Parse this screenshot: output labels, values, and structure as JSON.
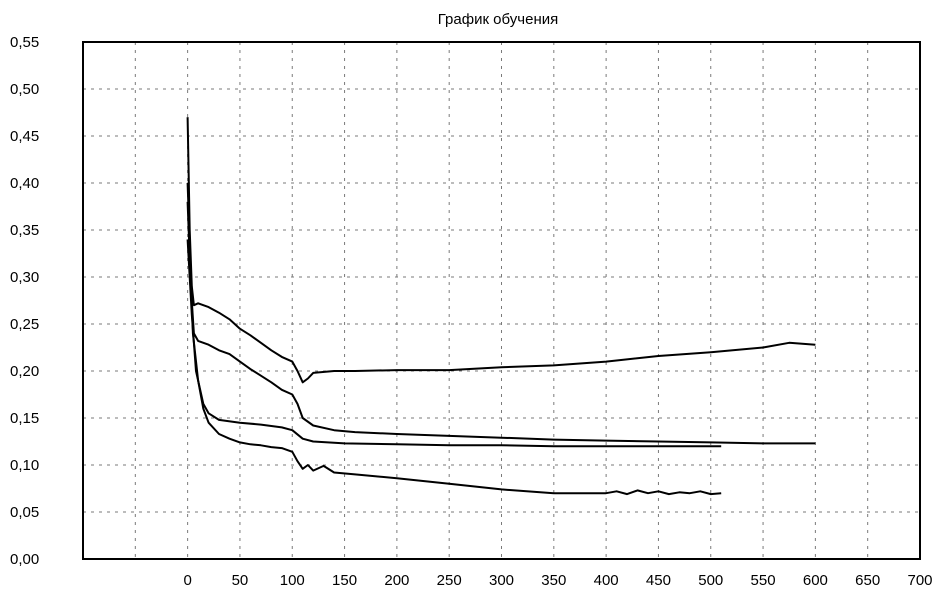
{
  "chart_data": {
    "type": "line",
    "title": "График обучения",
    "xlabel": "",
    "ylabel": "",
    "xlim": [
      -100,
      700
    ],
    "ylim": [
      0,
      0.55
    ],
    "grid": true,
    "x_ticks": [
      0,
      50,
      100,
      150,
      200,
      250,
      300,
      350,
      400,
      450,
      500,
      550,
      600,
      650,
      700
    ],
    "x_tick_labels": [
      "0",
      "50",
      "100",
      "150",
      "200",
      "250",
      "300",
      "350",
      "400",
      "450",
      "500",
      "550",
      "600",
      "650",
      "700"
    ],
    "y_ticks": [
      0,
      0.05,
      0.1,
      0.15,
      0.2,
      0.25,
      0.3,
      0.35,
      0.4,
      0.45,
      0.5,
      0.55
    ],
    "y_tick_labels": [
      "0,00",
      "0,05",
      "0,10",
      "0,15",
      "0,20",
      "0,25",
      "0,30",
      "0,35",
      "0,40",
      "0,45",
      "0,50",
      "0,55"
    ],
    "series": [
      {
        "values": [
          [
            0,
            0.47
          ],
          [
            2,
            0.35
          ],
          [
            4,
            0.29
          ],
          [
            6,
            0.27
          ],
          [
            10,
            0.272
          ],
          [
            20,
            0.268
          ],
          [
            30,
            0.262
          ],
          [
            40,
            0.255
          ],
          [
            50,
            0.245
          ],
          [
            60,
            0.238
          ],
          [
            70,
            0.23
          ],
          [
            80,
            0.222
          ],
          [
            90,
            0.215
          ],
          [
            100,
            0.21
          ],
          [
            105,
            0.2
          ],
          [
            110,
            0.188
          ],
          [
            115,
            0.192
          ],
          [
            120,
            0.198
          ],
          [
            140,
            0.2
          ],
          [
            160,
            0.2
          ],
          [
            200,
            0.201
          ],
          [
            250,
            0.201
          ],
          [
            300,
            0.204
          ],
          [
            350,
            0.206
          ],
          [
            400,
            0.21
          ],
          [
            450,
            0.216
          ],
          [
            500,
            0.22
          ],
          [
            550,
            0.225
          ],
          [
            575,
            0.23
          ],
          [
            600,
            0.228
          ]
        ]
      },
      {
        "values": [
          [
            0,
            0.38
          ],
          [
            3,
            0.29
          ],
          [
            6,
            0.24
          ],
          [
            10,
            0.232
          ],
          [
            20,
            0.228
          ],
          [
            30,
            0.222
          ],
          [
            40,
            0.218
          ],
          [
            50,
            0.21
          ],
          [
            60,
            0.202
          ],
          [
            70,
            0.195
          ],
          [
            80,
            0.188
          ],
          [
            90,
            0.18
          ],
          [
            100,
            0.175
          ],
          [
            105,
            0.165
          ],
          [
            110,
            0.15
          ],
          [
            120,
            0.142
          ],
          [
            140,
            0.137
          ],
          [
            160,
            0.135
          ],
          [
            200,
            0.133
          ],
          [
            250,
            0.131
          ],
          [
            300,
            0.129
          ],
          [
            350,
            0.127
          ],
          [
            400,
            0.126
          ],
          [
            450,
            0.125
          ],
          [
            500,
            0.124
          ],
          [
            550,
            0.123
          ],
          [
            600,
            0.123
          ]
        ]
      },
      {
        "values": [
          [
            0,
            0.34
          ],
          [
            4,
            0.26
          ],
          [
            8,
            0.2
          ],
          [
            15,
            0.165
          ],
          [
            20,
            0.155
          ],
          [
            30,
            0.148
          ],
          [
            50,
            0.145
          ],
          [
            70,
            0.143
          ],
          [
            90,
            0.14
          ],
          [
            100,
            0.137
          ],
          [
            110,
            0.128
          ],
          [
            120,
            0.125
          ],
          [
            150,
            0.123
          ],
          [
            200,
            0.122
          ],
          [
            250,
            0.121
          ],
          [
            300,
            0.121
          ],
          [
            350,
            0.12
          ],
          [
            400,
            0.12
          ],
          [
            450,
            0.12
          ],
          [
            510,
            0.12
          ]
        ]
      },
      {
        "values": [
          [
            0,
            0.4
          ],
          [
            5,
            0.24
          ],
          [
            10,
            0.19
          ],
          [
            15,
            0.16
          ],
          [
            20,
            0.145
          ],
          [
            30,
            0.133
          ],
          [
            40,
            0.128
          ],
          [
            50,
            0.124
          ],
          [
            60,
            0.122
          ],
          [
            70,
            0.121
          ],
          [
            80,
            0.119
          ],
          [
            90,
            0.118
          ],
          [
            100,
            0.114
          ],
          [
            105,
            0.104
          ],
          [
            110,
            0.096
          ],
          [
            115,
            0.1
          ],
          [
            120,
            0.094
          ],
          [
            130,
            0.099
          ],
          [
            140,
            0.092
          ],
          [
            160,
            0.09
          ],
          [
            200,
            0.086
          ],
          [
            250,
            0.08
          ],
          [
            300,
            0.074
          ],
          [
            350,
            0.07
          ],
          [
            400,
            0.07
          ],
          [
            410,
            0.072
          ],
          [
            420,
            0.069
          ],
          [
            430,
            0.073
          ],
          [
            440,
            0.07
          ],
          [
            450,
            0.072
          ],
          [
            460,
            0.069
          ],
          [
            470,
            0.071
          ],
          [
            480,
            0.07
          ],
          [
            490,
            0.072
          ],
          [
            500,
            0.069
          ],
          [
            510,
            0.07
          ]
        ]
      }
    ]
  }
}
